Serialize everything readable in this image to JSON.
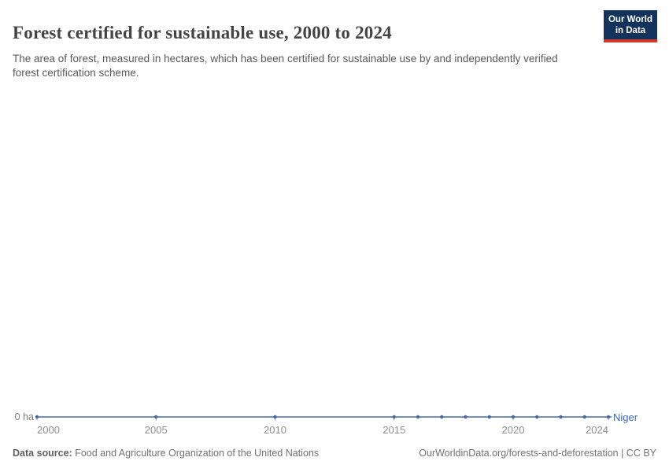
{
  "header": {
    "title": "Forest certified for sustainable use, 2000 to 2024",
    "subtitle": "The area of forest, measured in hectares, which has been certified for sustainable use by and independently verified forest certification scheme.",
    "logo": {
      "line1": "Our World",
      "line2": "in Data",
      "background": "#14335c",
      "accent": "#d4382d"
    }
  },
  "chart_data": {
    "type": "line",
    "title": "Forest certified for sustainable use, 2000 to 2024",
    "unit": "hectares",
    "x": [
      2000,
      2005,
      2010,
      2015,
      2016,
      2017,
      2018,
      2019,
      2020,
      2021,
      2022,
      2023,
      2024
    ],
    "series": [
      {
        "name": "Niger",
        "color": "#4868a8",
        "values": [
          0,
          0,
          0,
          0,
          0,
          0,
          0,
          0,
          0,
          0,
          0,
          0,
          0
        ]
      }
    ],
    "x_ticks": [
      2000,
      2005,
      2010,
      2015,
      2020,
      2024
    ],
    "xlim": [
      2000,
      2024
    ],
    "ylim": [
      0,
      0
    ],
    "baseline_label": "0 ha",
    "grid": false,
    "legend_position": "end-of-line",
    "entity_label_color": "#3d6bb5",
    "axis_text_color": "#8f8f8f",
    "tick_mark_color": "#9e9e9e"
  },
  "footer": {
    "datasource_label": "Data source:",
    "datasource_text": " Food and Agriculture Organization of the United Nations",
    "link": "OurWorldinData.org/forests-and-deforestation | CC BY"
  }
}
